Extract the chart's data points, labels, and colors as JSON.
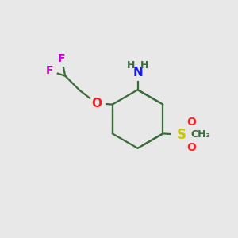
{
  "bg_color": "#e8e8e8",
  "bond_color": "#3a6b3a",
  "bond_width": 1.6,
  "atom_colors": {
    "N": "#1a1aff",
    "O": "#ff2020",
    "F": "#cc00cc",
    "S": "#c8c800",
    "C": "#3a6b3a",
    "H": "#3a6b3a"
  },
  "font_size": 10,
  "fig_size": [
    3.0,
    3.0
  ],
  "dpi": 100
}
